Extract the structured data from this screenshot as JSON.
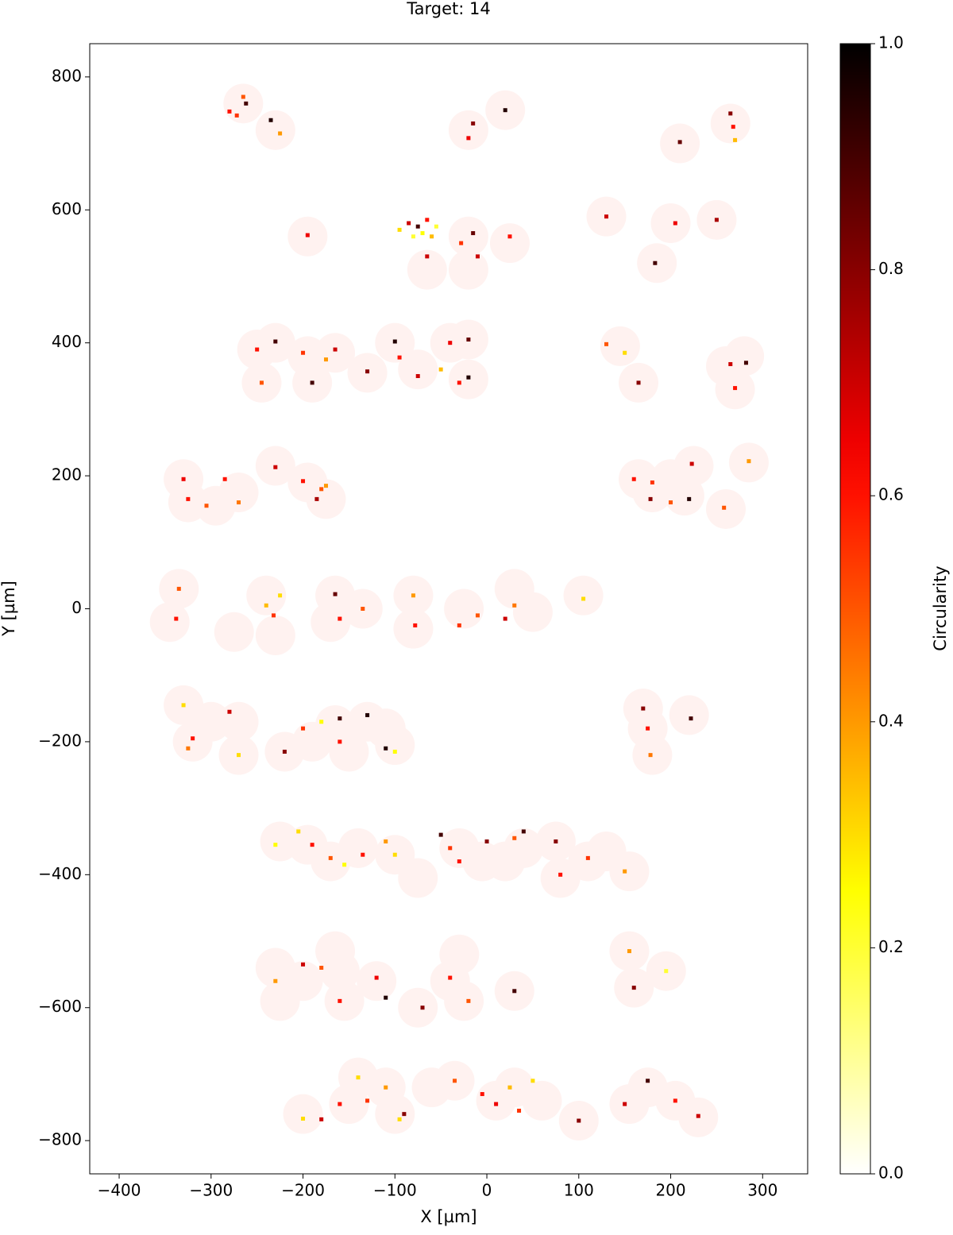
{
  "chart_data": {
    "type": "scatter",
    "title": "Target: 14",
    "xlabel": "X [µm]",
    "ylabel": "Y [µm]",
    "xlim": [
      -432,
      349
    ],
    "ylim": [
      -850,
      850
    ],
    "xticks": [
      {
        "value": -400,
        "label": "−400"
      },
      {
        "value": -300,
        "label": "−300"
      },
      {
        "value": -200,
        "label": "−200"
      },
      {
        "value": -100,
        "label": "−100"
      },
      0,
      100,
      200,
      300
    ],
    "yticks": [
      {
        "value": -800,
        "label": "−800"
      },
      {
        "value": -600,
        "label": "−600"
      },
      {
        "value": -400,
        "label": "−400"
      },
      {
        "value": -200,
        "label": "−200"
      },
      0,
      200,
      400,
      600,
      800
    ],
    "colorbar_label": "Circularity",
    "colormap": "hot_r",
    "clim": [
      0,
      1
    ],
    "cticks": [
      {
        "value": 0,
        "label": "0.0"
      },
      0.2,
      0.4,
      0.6,
      0.8,
      {
        "value": 1,
        "label": "1.0"
      }
    ],
    "region_color": "#fff2f0",
    "regions": {
      "x": [
        -265,
        -230,
        -20,
        20,
        210,
        265,
        -195,
        -65,
        -20,
        -20,
        25,
        130,
        200,
        185,
        250,
        -250,
        -230,
        -195,
        -165,
        -245,
        -190,
        -130,
        -100,
        -75,
        -40,
        -20,
        -20,
        145,
        165,
        260,
        280,
        270,
        -330,
        -325,
        -295,
        -270,
        -230,
        -195,
        -175,
        165,
        180,
        200,
        225,
        215,
        260,
        285,
        -335,
        -345,
        -275,
        -240,
        -230,
        -165,
        -170,
        -135,
        -80,
        -80,
        -25,
        30,
        50,
        105,
        -330,
        -300,
        -320,
        -270,
        -270,
        -220,
        -190,
        -165,
        -150,
        -130,
        -110,
        -100,
        170,
        175,
        180,
        220,
        -225,
        -195,
        -170,
        -140,
        -100,
        -75,
        -30,
        -5,
        20,
        40,
        75,
        80,
        110,
        130,
        155,
        -230,
        -225,
        -200,
        -165,
        -160,
        -155,
        -120,
        -75,
        -40,
        -30,
        -25,
        30,
        155,
        160,
        195,
        -200,
        -150,
        -140,
        -110,
        -100,
        -60,
        -35,
        10,
        30,
        60,
        100,
        155,
        175,
        205,
        230
      ],
      "y": [
        760,
        720,
        720,
        750,
        700,
        730,
        560,
        510,
        560,
        510,
        550,
        590,
        580,
        520,
        585,
        390,
        400,
        380,
        385,
        340,
        340,
        355,
        400,
        360,
        400,
        405,
        345,
        395,
        340,
        365,
        380,
        330,
        195,
        160,
        155,
        175,
        215,
        190,
        165,
        195,
        175,
        195,
        215,
        170,
        150,
        220,
        30,
        -20,
        -35,
        20,
        -40,
        20,
        -20,
        0,
        20,
        -30,
        0,
        30,
        -5,
        20,
        -145,
        -170,
        -200,
        -170,
        -220,
        -215,
        -200,
        -175,
        -215,
        -170,
        -180,
        -205,
        -150,
        -180,
        -220,
        -160,
        -350,
        -355,
        -380,
        -360,
        -370,
        -405,
        -360,
        -380,
        -380,
        -360,
        -350,
        -405,
        -380,
        -365,
        -395,
        -540,
        -590,
        -560,
        -515,
        -545,
        -590,
        -560,
        -600,
        -560,
        -520,
        -590,
        -575,
        -515,
        -570,
        -545,
        -760,
        -745,
        -705,
        -720,
        -760,
        -720,
        -710,
        -740,
        -720,
        -740,
        -770,
        -745,
        -720,
        -740,
        -765
      ]
    },
    "particles": {
      "x": [
        -280,
        -272,
        -265,
        -262,
        -235,
        -225,
        -20,
        -15,
        20,
        210,
        265,
        268,
        270,
        -195,
        -95,
        -85,
        -80,
        -75,
        -70,
        -65,
        -60,
        -55,
        -65,
        -28,
        -15,
        -10,
        25,
        130,
        205,
        183,
        250,
        -250,
        -230,
        -200,
        -175,
        -165,
        -245,
        -190,
        -130,
        -100,
        -95,
        -75,
        -50,
        -40,
        -20,
        -30,
        -20,
        130,
        150,
        165,
        265,
        270,
        282,
        -330,
        -325,
        -305,
        -285,
        -270,
        -230,
        -200,
        -180,
        -185,
        -175,
        160,
        180,
        178,
        200,
        223,
        220,
        258,
        285,
        -335,
        -338,
        -240,
        -232,
        -225,
        -165,
        -160,
        -135,
        -80,
        -78,
        -30,
        -10,
        20,
        30,
        105,
        -330,
        -320,
        -325,
        -280,
        -270,
        -220,
        -200,
        -180,
        -160,
        -160,
        -130,
        -110,
        -100,
        170,
        175,
        178,
        222,
        -230,
        -205,
        -190,
        -170,
        -155,
        -135,
        -110,
        -100,
        -50,
        -40,
        -30,
        0,
        30,
        40,
        75,
        80,
        110,
        150,
        -230,
        -200,
        -180,
        -160,
        -120,
        -110,
        -70,
        -40,
        -20,
        30,
        155,
        160,
        195,
        -200,
        -180,
        -160,
        -140,
        -130,
        -110,
        -95,
        -90,
        -35,
        -5,
        10,
        25,
        35,
        50,
        100,
        150,
        175,
        205,
        230
      ],
      "y": [
        748,
        742,
        770,
        760,
        735,
        715,
        708,
        730,
        750,
        702,
        745,
        725,
        705,
        562,
        570,
        580,
        560,
        575,
        565,
        585,
        560,
        575,
        530,
        550,
        565,
        530,
        560,
        590,
        580,
        520,
        585,
        390,
        402,
        385,
        375,
        390,
        340,
        340,
        357,
        402,
        378,
        350,
        360,
        400,
        405,
        340,
        348,
        398,
        385,
        340,
        368,
        332,
        370,
        195,
        165,
        155,
        195,
        160,
        213,
        192,
        180,
        165,
        185,
        195,
        190,
        165,
        160,
        218,
        165,
        152,
        222,
        30,
        -15,
        5,
        -10,
        20,
        22,
        -15,
        0,
        20,
        -25,
        -25,
        -10,
        -15,
        5,
        15,
        -145,
        -195,
        -210,
        -155,
        -220,
        -215,
        -180,
        -170,
        -165,
        -200,
        -160,
        -210,
        -215,
        -150,
        -180,
        -220,
        -165,
        -355,
        -335,
        -355,
        -375,
        -385,
        -370,
        -350,
        -370,
        -340,
        -360,
        -380,
        -350,
        -345,
        -335,
        -350,
        -400,
        -375,
        -395,
        -560,
        -535,
        -540,
        -590,
        -555,
        -585,
        -600,
        -555,
        -590,
        -575,
        -515,
        -570,
        -545,
        -767,
        -768,
        -745,
        -705,
        -740,
        -720,
        -768,
        -760,
        -710,
        -730,
        -745,
        -720,
        -755,
        -710,
        -770,
        -745,
        -710,
        -740,
        -763
      ],
      "values": [
        0.6,
        0.55,
        0.5,
        0.9,
        0.95,
        0.4,
        0.65,
        0.8,
        0.95,
        0.85,
        0.8,
        0.6,
        0.35,
        0.65,
        0.3,
        0.7,
        0.2,
        0.9,
        0.25,
        0.6,
        0.35,
        0.2,
        0.7,
        0.55,
        0.85,
        0.7,
        0.6,
        0.7,
        0.65,
        0.9,
        0.75,
        0.6,
        0.9,
        0.55,
        0.4,
        0.7,
        0.5,
        0.9,
        0.8,
        0.95,
        0.6,
        0.7,
        0.35,
        0.65,
        0.85,
        0.6,
        0.95,
        0.5,
        0.3,
        0.8,
        0.7,
        0.6,
        0.9,
        0.65,
        0.6,
        0.5,
        0.6,
        0.45,
        0.7,
        0.6,
        0.5,
        0.75,
        0.4,
        0.6,
        0.55,
        0.8,
        0.5,
        0.7,
        0.95,
        0.5,
        0.4,
        0.5,
        0.6,
        0.35,
        0.55,
        0.3,
        0.85,
        0.6,
        0.5,
        0.4,
        0.6,
        0.55,
        0.5,
        0.7,
        0.45,
        0.3,
        0.3,
        0.6,
        0.45,
        0.7,
        0.3,
        0.8,
        0.55,
        0.25,
        0.9,
        0.6,
        0.95,
        0.95,
        0.25,
        0.8,
        0.6,
        0.45,
        0.9,
        0.25,
        0.3,
        0.6,
        0.5,
        0.25,
        0.6,
        0.4,
        0.3,
        0.9,
        0.55,
        0.6,
        0.8,
        0.5,
        0.9,
        0.8,
        0.6,
        0.55,
        0.4,
        0.4,
        0.7,
        0.5,
        0.6,
        0.65,
        0.95,
        0.8,
        0.6,
        0.5,
        0.9,
        0.4,
        0.8,
        0.2,
        0.3,
        0.7,
        0.6,
        0.3,
        0.55,
        0.4,
        0.3,
        0.8,
        0.5,
        0.6,
        0.65,
        0.35,
        0.55,
        0.3,
        0.8,
        0.7,
        0.9,
        0.6,
        0.7
      ]
    }
  }
}
